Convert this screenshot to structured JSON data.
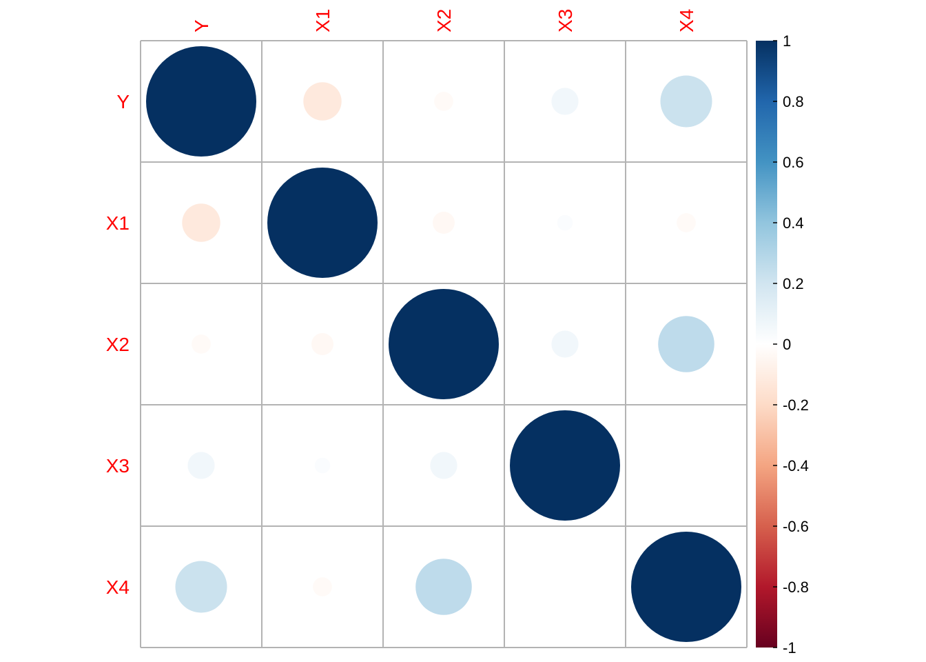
{
  "chart_data": {
    "type": "heatmap",
    "variables": [
      "Y",
      "X1",
      "X2",
      "X3",
      "X4"
    ],
    "matrix": [
      [
        1.0,
        -0.12,
        -0.03,
        0.06,
        0.22
      ],
      [
        -0.12,
        1.0,
        -0.04,
        0.02,
        -0.03
      ],
      [
        -0.03,
        -0.04,
        1.0,
        0.06,
        0.26
      ],
      [
        0.06,
        0.02,
        0.06,
        1.0,
        0.0
      ],
      [
        0.22,
        -0.03,
        0.26,
        0.0,
        1.0
      ]
    ],
    "color_scale": {
      "range": [
        -1,
        1
      ],
      "ticks": [
        1,
        0.8,
        0.6,
        0.4,
        0.2,
        0,
        -0.2,
        -0.4,
        -0.6,
        -0.8,
        -1
      ],
      "tick_labels": [
        "1",
        "0.8",
        "0.6",
        "0.4",
        "0.2",
        "0",
        "-0.2",
        "-0.4",
        "-0.6",
        "-0.8",
        "-1"
      ],
      "colors": [
        "#67001f",
        "#b2182b",
        "#d6604d",
        "#f4a582",
        "#fddbc7",
        "#ffffff",
        "#d1e5f0",
        "#92c5de",
        "#4393c3",
        "#2166ac",
        "#053061"
      ]
    },
    "label_color": "#ff0000",
    "grid_color": "#b3b3b3",
    "grid": true,
    "legend_placement": "right"
  }
}
